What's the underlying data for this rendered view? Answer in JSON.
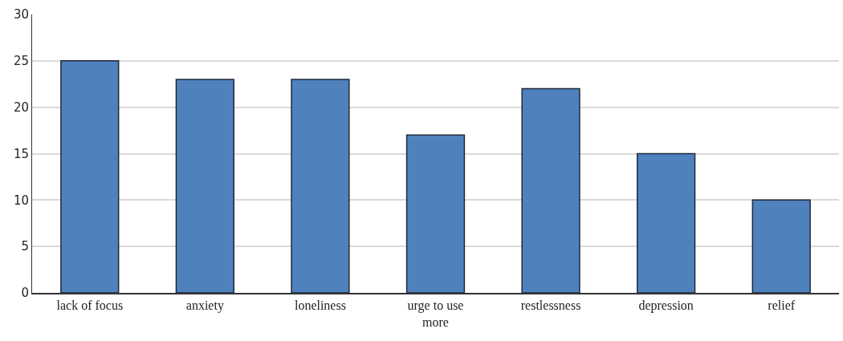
{
  "chart_data": {
    "type": "bar",
    "categories": [
      "lack of focus",
      "anxiety",
      "loneliness",
      "urge to use more",
      "restlessness",
      "depression",
      "relief"
    ],
    "values": [
      25,
      23,
      23,
      17,
      22,
      15,
      10
    ],
    "color": "#4f81bd",
    "ylim": [
      0,
      30
    ],
    "yticks": [
      0,
      5,
      10,
      15,
      20,
      25,
      30
    ],
    "grid": "y"
  }
}
